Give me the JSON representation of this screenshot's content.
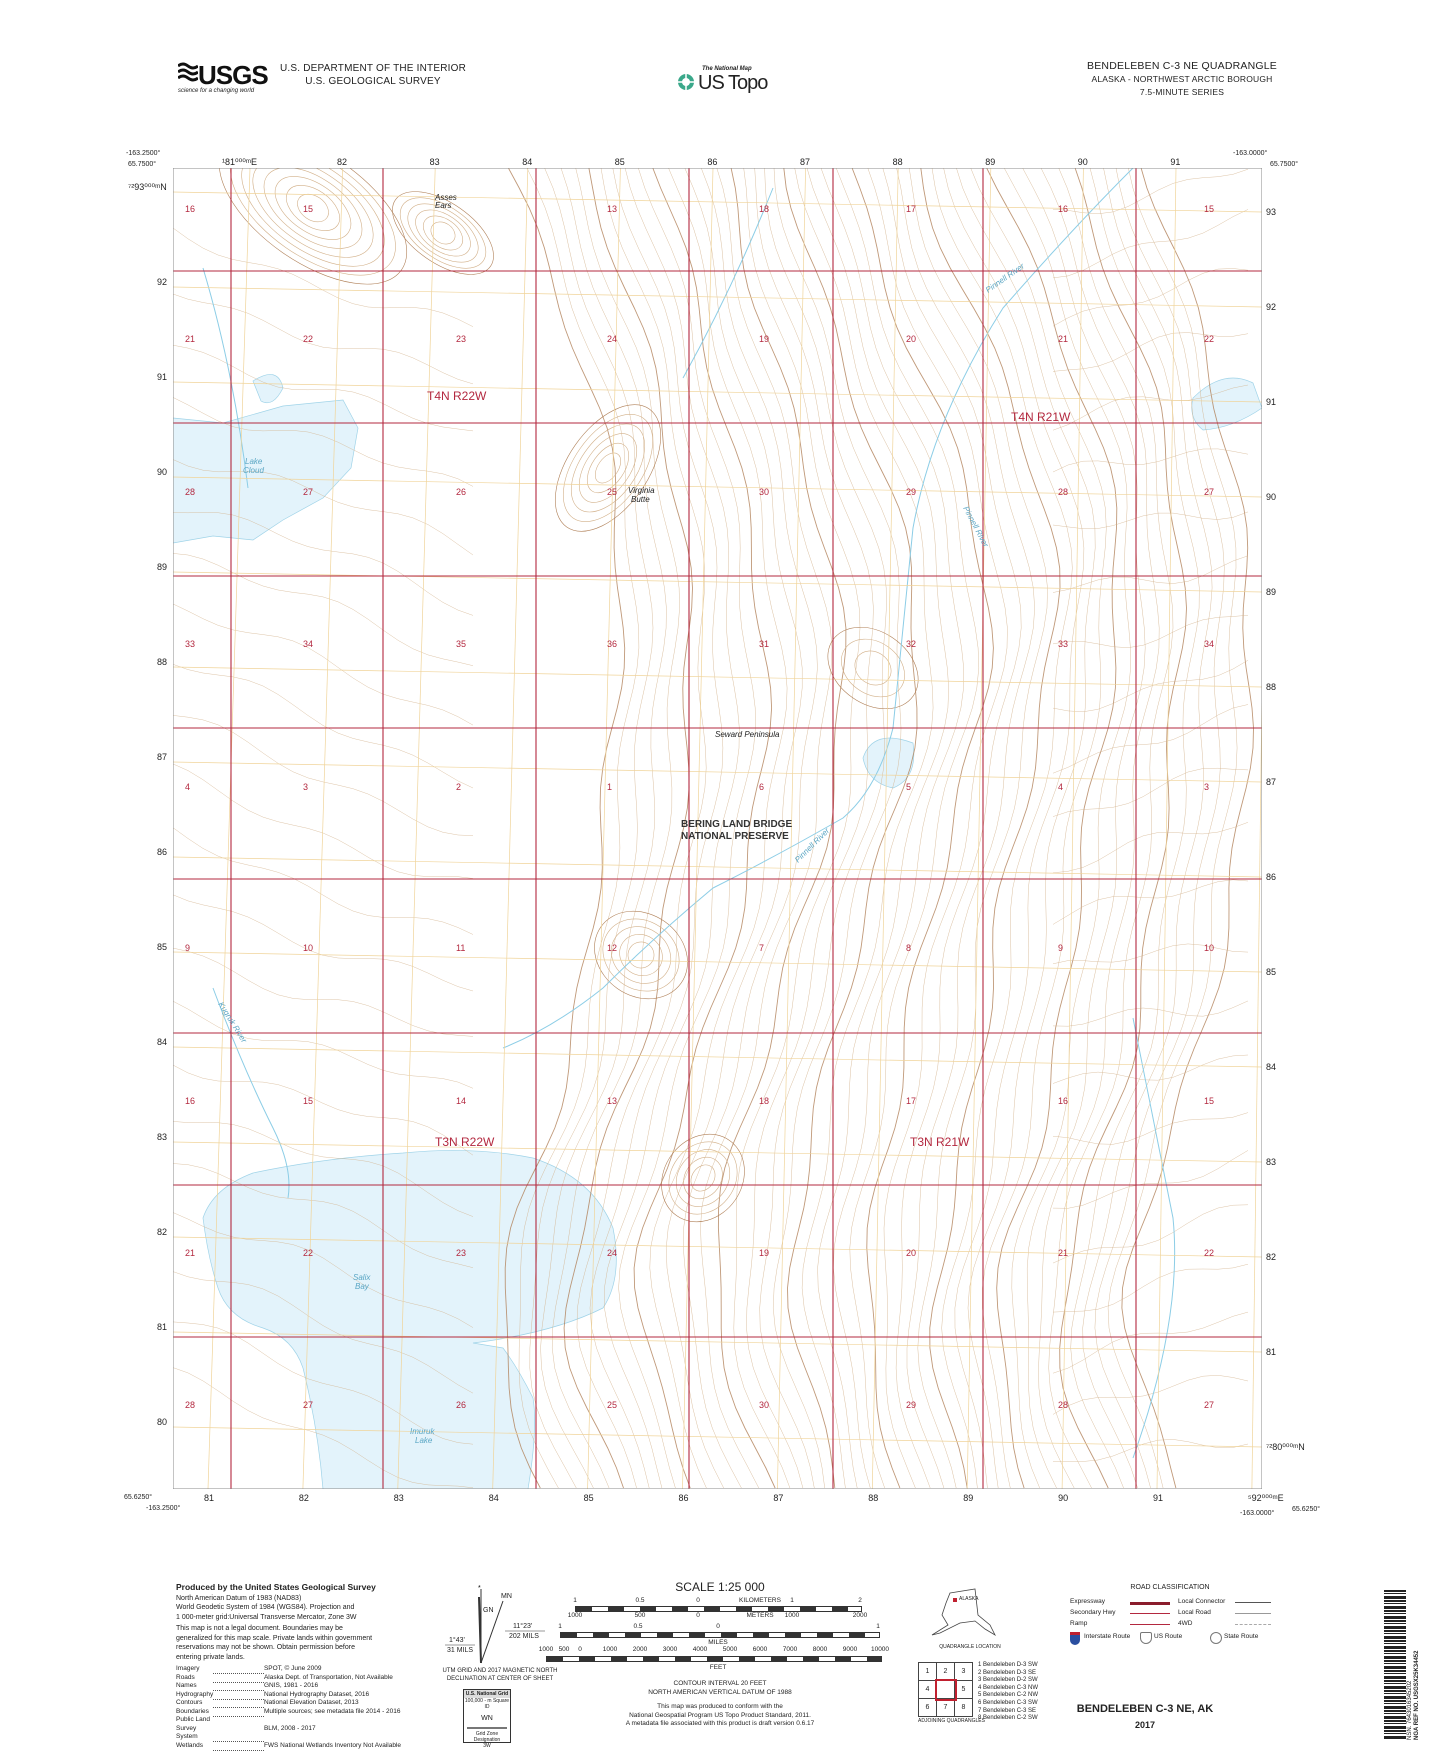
{
  "header": {
    "agency_logo_text": "USGS",
    "agency_tagline": "science for a changing world",
    "department": "U.S. DEPARTMENT OF THE INTERIOR",
    "survey": "U.S. GEOLOGICAL SURVEY",
    "product_small": "The National Map",
    "product": "US Topo",
    "quadrangle_title": "BENDELEBEN C-3 NE QUADRANGLE",
    "region": "ALASKA - NORTHWEST ARCTIC BOROUGH",
    "series": "7.5-MINUTE SERIES"
  },
  "corners": {
    "nw_lon": "-163.2500°",
    "nw_lat": "65.7500°",
    "ne_lon": "-163.0000°",
    "ne_lat": "65.7500°",
    "sw_lon": "-163.2500°",
    "sw_lat": "65.6250°",
    "se_lon": "-163.0000°",
    "se_lat": "65.6250°"
  },
  "grid": {
    "top_easting_labels": [
      "¹81⁰⁰⁰ᵐE",
      "82",
      "83",
      "84",
      "85",
      "86",
      "87",
      "88",
      "89",
      "90",
      "91"
    ],
    "bottom_easting_labels": [
      "81",
      "82",
      "83",
      "84",
      "85",
      "86",
      "87",
      "88",
      "89",
      "90",
      "91",
      "⁵92⁰⁰⁰ᵐE"
    ],
    "left_northing_labels": [
      "⁷²93⁰⁰⁰ᵐN",
      "92",
      "91",
      "90",
      "89",
      "88",
      "87",
      "86",
      "85",
      "84",
      "83",
      "82",
      "81",
      "80"
    ],
    "right_northing_labels": [
      "93",
      "92",
      "91",
      "90",
      "89",
      "88",
      "87",
      "86",
      "85",
      "84",
      "83",
      "82",
      "81",
      "⁷²80⁰⁰⁰ᵐN"
    ]
  },
  "sections": [
    [
      "16",
      "15",
      "",
      "13",
      "18",
      "17",
      "16",
      "15"
    ],
    [
      "21",
      "22",
      "23",
      "24",
      "19",
      "20",
      "21",
      "22"
    ],
    [
      "28",
      "27",
      "26",
      "25",
      "30",
      "29",
      "28",
      "27"
    ],
    [
      "33",
      "34",
      "35",
      "36",
      "31",
      "32",
      "33",
      "34"
    ],
    [
      "4",
      "3",
      "2",
      "1",
      "6",
      "5",
      "4",
      "3"
    ],
    [
      "9",
      "10",
      "11",
      "12",
      "7",
      "8",
      "9",
      "10"
    ],
    [
      "16",
      "15",
      "14",
      "13",
      "18",
      "17",
      "16",
      "15"
    ],
    [
      "21",
      "22",
      "23",
      "24",
      "19",
      "20",
      "21",
      "22"
    ],
    [
      "28",
      "27",
      "26",
      "25",
      "30",
      "29",
      "28",
      "27"
    ]
  ],
  "townships": [
    "T4N R22W",
    "T4N R21W",
    "T3N R22W",
    "T3N R21W"
  ],
  "place_names": {
    "asses_ears_1": "Asses",
    "asses_ears_2": "Ears",
    "virginia_butte_1": "Virginia",
    "virginia_butte_2": "Butte",
    "lake_cloud_1": "Lake",
    "lake_cloud_2": "Cloud",
    "seward": "Seward Peninsula",
    "preserve_1": "BERING LAND BRIDGE",
    "preserve_2": "NATIONAL PRESERVE",
    "salix_1": "Salix",
    "salix_2": "Bay",
    "imuruk_1": "Imuruk",
    "imuruk_2": "Lake",
    "pinnell_river": "Pinnell River",
    "kugruk_river": "Kugruk River"
  },
  "colors": {
    "paper": "#ffffff",
    "water": "#e3f3fb",
    "stream": "#8ccde6",
    "contour": "#d2b089",
    "index_contour": "#b08058",
    "section_line": "#b3283f",
    "utm_grid": "#f0d49a",
    "text_red": "#b3283f"
  },
  "footer": {
    "produced_by": "Produced by the United States Geological Survey",
    "datum_lines": [
      "North American Datum of 1983 (NAD83)",
      "World Geodetic System of 1984 (WGS84).  Projection and",
      "1 000-meter grid:Universal Transverse Mercator, Zone 3W"
    ],
    "disclaimer_lines": [
      "This map is not a legal document. Boundaries may be",
      "generalized for this map scale. Private lands within government",
      "reservations may not be shown. Obtain permission before",
      "entering private lands."
    ],
    "credits": [
      {
        "k": "Imagery",
        "v": "SPOT, © June 2009"
      },
      {
        "k": "Roads",
        "v": "Alaska Dept. of Transportation, Not Available"
      },
      {
        "k": "Names",
        "v": "GNIS, 1981 - 2016"
      },
      {
        "k": "Hydrography",
        "v": "National Hydrography Dataset, 2016"
      },
      {
        "k": "Contours",
        "v": "National Elevation Dataset, 2013"
      },
      {
        "k": "Boundaries",
        "v": "Multiple sources; see metadata file 2014 - 2016"
      },
      {
        "k": "Public Land Survey System",
        "v": "BLM, 2008 - 2017"
      },
      {
        "k": "Wetlands",
        "v": "FWS National Wetlands Inventory Not Available"
      }
    ],
    "declination": {
      "mn": "MN",
      "gn": "GN",
      "angle1": "1°43'",
      "mils1": "31 MILS",
      "angle2": "11°23'",
      "mils2": "202 MILS",
      "caption1": "UTM GRID AND 2017 MAGNETIC NORTH",
      "caption2": "DECLINATION AT CENTER OF SHEET"
    },
    "usng": {
      "title": "U.S. National Grid",
      "subtitle": "100,000 - m Square ID",
      "square_id": "WN",
      "gzd_label": "Grid Zone Designation",
      "gzd": "3W"
    },
    "scale": {
      "title": "SCALE 1:25 000",
      "km_labels": [
        "1",
        "0.5",
        "0",
        "KILOMETERS",
        "1",
        "2"
      ],
      "m_labels": [
        "1000",
        "500",
        "0",
        "METERS",
        "1000",
        "2000"
      ],
      "mi_labels": [
        "1",
        "0.5",
        "0",
        "1"
      ],
      "mi_unit": "MILES",
      "ft_labels": [
        "1000",
        "500",
        "0",
        "1000",
        "2000",
        "3000",
        "4000",
        "5000",
        "6000",
        "7000",
        "8000",
        "9000",
        "10000"
      ],
      "ft_unit": "FEET"
    },
    "contour_interval": "CONTOUR INTERVAL 20 FEET",
    "vertical_datum": "NORTH AMERICAN VERTICAL DATUM OF 1988",
    "conform_lines": [
      "This map was produced to conform with the",
      "National Geospatial Program US Topo Product Standard, 2011.",
      "A metadata file associated with this product is draft version 0.6.17"
    ],
    "location_label": "ALASKA",
    "quadrangle_location": "QUADRANGLE LOCATION",
    "road_classification": {
      "title": "ROAD CLASSIFICATION",
      "left": [
        "Expressway",
        "Secondary Hwy",
        "Ramp"
      ],
      "right": [
        "Local Connector",
        "Local Road",
        "4WD"
      ],
      "shields": [
        "Interstate Route",
        "US Route",
        "State Route"
      ]
    },
    "adjoining": {
      "cells": [
        "1",
        "2",
        "3",
        "4",
        "",
        "5",
        "6",
        "7",
        "8"
      ],
      "caption": "ADJOINING QUADRANGLES",
      "list": [
        "1 Bendeleben D-3 SW",
        "2 Bendeleben D-3 SE",
        "3 Bendeleben D-2 SW",
        "4 Bendeleben C-3 NW",
        "5 Bendeleben C-2 NW",
        "6 Bendeleben C-3 SW",
        "7 Bendeleben C-3 SE",
        "8 Bendeleben C-2 SW"
      ]
    },
    "quad_name": "BENDELEBEN C-3 NE,  AK",
    "year": "2017",
    "barcode_text": "NSN. 7643016345202",
    "nga_ref": "NGA REF NO. USGSX25K34452"
  }
}
